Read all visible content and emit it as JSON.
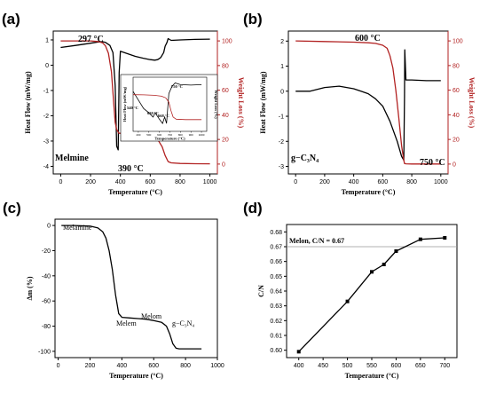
{
  "figure": {
    "panels": [
      {
        "id": "a",
        "label": "(a)"
      },
      {
        "id": "b",
        "label": "(b)"
      },
      {
        "id": "c",
        "label": "(c)"
      },
      {
        "id": "d",
        "label": "(d)"
      }
    ]
  },
  "chart_data": [
    {
      "panel": "(a)",
      "type": "line",
      "title": "",
      "xlabel": "Temperature (°C)",
      "ylabel": "Heat Flow (mW/mg)",
      "ylabel_right": "Weight Loss (%)",
      "xlim": [
        -50,
        1050
      ],
      "ylim": [
        -4.3,
        1.35
      ],
      "ylim_right": [
        -8,
        108
      ],
      "xticks": [
        "0",
        "200",
        "400",
        "600",
        "800",
        "1000"
      ],
      "yticks": [
        "1",
        "0",
        "-1",
        "-2",
        "-3",
        "-4"
      ],
      "yticks_right": [
        "100",
        "80",
        "60",
        "40",
        "20",
        "0"
      ],
      "series": [
        {
          "color": "#000000",
          "axis": "left",
          "x": [
            0,
            100,
            200,
            250,
            280,
            300,
            330,
            350,
            365,
            375,
            385,
            392,
            400,
            450,
            500,
            550,
            600,
            630,
            650,
            670,
            690,
            700,
            712,
            720,
            740,
            800,
            900,
            1000
          ],
          "y": [
            0.7,
            0.78,
            0.87,
            0.92,
            0.93,
            0.9,
            0.78,
            0.5,
            -0.8,
            -3.2,
            -3.35,
            -0.3,
            0.55,
            0.45,
            0.35,
            0.28,
            0.22,
            0.2,
            0.22,
            0.3,
            0.5,
            0.75,
            0.9,
            1.05,
            0.98,
            1.0,
            1.02,
            1.03
          ]
        },
        {
          "color": "#b22222",
          "axis": "right",
          "x": [
            0,
            100,
            200,
            250,
            280,
            300,
            320,
            340,
            355,
            365,
            375,
            390,
            400,
            450,
            500,
            550,
            600,
            650,
            680,
            700,
            720,
            740,
            800,
            900,
            1000
          ],
          "y": [
            100,
            100,
            100,
            99.5,
            98.5,
            96,
            90,
            75,
            50,
            34,
            28,
            25,
            25,
            24.5,
            24,
            23.5,
            23,
            20,
            14,
            7,
            2,
            1,
            0.5,
            0.3,
            0.2
          ]
        }
      ],
      "annotations": [
        "297 °C",
        "390 °C",
        "Melmine"
      ],
      "inset": {
        "xlabel": "Temperature (°C)",
        "ylabel": "Heat Flow (mW/mg)",
        "ylabel_right": "Weight Loss (%)",
        "xticks": [
          "400",
          "500",
          "600",
          "700",
          "800",
          "900",
          "1000"
        ],
        "annotations": [
          "540 °C",
          "630 °C",
          "668 °C",
          "750 °C"
        ]
      }
    },
    {
      "panel": "(b)",
      "type": "line",
      "title": "",
      "xlabel": "Temperature (°C)",
      "ylabel": "Heat Flow (mW/mg)",
      "ylabel_right": "Weight Loss (%)",
      "xlim": [
        -50,
        1050
      ],
      "ylim": [
        -3.3,
        2.4
      ],
      "ylim_right": [
        -8,
        108
      ],
      "xticks": [
        "0",
        "200",
        "400",
        "600",
        "800",
        "1000"
      ],
      "yticks": [
        "2",
        "1",
        "0",
        "-1",
        "-2",
        "-3"
      ],
      "yticks_right": [
        "100",
        "80",
        "60",
        "40",
        "20",
        "0"
      ],
      "series": [
        {
          "color": "#000000",
          "axis": "left",
          "x": [
            0,
            100,
            200,
            300,
            400,
            450,
            500,
            550,
            600,
            650,
            700,
            730,
            745,
            750,
            752,
            760,
            800,
            900,
            1000
          ],
          "y": [
            0.0,
            0.0,
            0.15,
            0.2,
            0.1,
            0.0,
            -0.1,
            -0.3,
            -0.6,
            -1.2,
            -2.0,
            -2.6,
            -2.75,
            -0.2,
            1.65,
            0.45,
            0.45,
            0.42,
            0.42
          ]
        },
        {
          "color": "#b22222",
          "axis": "right",
          "x": [
            0,
            200,
            400,
            500,
            550,
            600,
            630,
            650,
            670,
            690,
            710,
            730,
            745,
            750,
            760,
            800,
            900,
            1000
          ],
          "y": [
            100,
            99.5,
            99,
            98.5,
            98,
            96.5,
            94,
            88,
            78,
            60,
            38,
            15,
            3,
            0.5,
            0.2,
            0.1,
            0.1,
            0.1
          ]
        }
      ],
      "annotations": [
        "600 °C",
        "750 °C",
        "g−C₃N₄"
      ]
    },
    {
      "panel": "(c)",
      "type": "line",
      "title": "",
      "xlabel": "Temperature (°C)",
      "ylabel": "Δm (%)",
      "xlim": [
        -20,
        1000
      ],
      "ylim": [
        -105,
        5
      ],
      "xticks": [
        "0",
        "200",
        "400",
        "600",
        "800",
        "1000"
      ],
      "yticks": [
        "0",
        "-20",
        "-40",
        "-60",
        "-80",
        "-100"
      ],
      "series": [
        {
          "color": "#000000",
          "x": [
            20,
            100,
            200,
            250,
            280,
            300,
            320,
            340,
            360,
            380,
            400,
            450,
            500,
            550,
            600,
            650,
            680,
            700,
            720,
            740,
            760,
            800,
            900
          ],
          "y": [
            0,
            0,
            -0.5,
            -2,
            -5,
            -10,
            -20,
            -35,
            -55,
            -70,
            -73,
            -73.5,
            -74,
            -74.5,
            -75.5,
            -77,
            -80,
            -86,
            -94,
            -97.5,
            -98,
            -98,
            -98
          ]
        }
      ],
      "annotations": [
        "Melamine",
        "Melem",
        "Melom",
        "g−C₃N₄"
      ]
    },
    {
      "panel": "(d)",
      "type": "line",
      "title": "",
      "xlabel": "Temperature (°C)",
      "ylabel": "C/N",
      "xlim": [
        375,
        725
      ],
      "ylim": [
        0.595,
        0.685
      ],
      "xticks": [
        "400",
        "450",
        "500",
        "550",
        "600",
        "650",
        "700"
      ],
      "yticks": [
        "0.68",
        "0.67",
        "0.66",
        "0.65",
        "0.64",
        "0.63",
        "0.62",
        "0.61",
        "0.60"
      ],
      "series": [
        {
          "color": "#000000",
          "x": [
            400,
            500,
            550,
            575,
            600,
            650,
            700
          ],
          "y": [
            0.599,
            0.633,
            0.653,
            0.658,
            0.667,
            0.675,
            0.676
          ]
        }
      ],
      "reference_line": {
        "y": 0.67,
        "label": "Melon, C/N = 0.67",
        "color": "#999999"
      }
    }
  ]
}
